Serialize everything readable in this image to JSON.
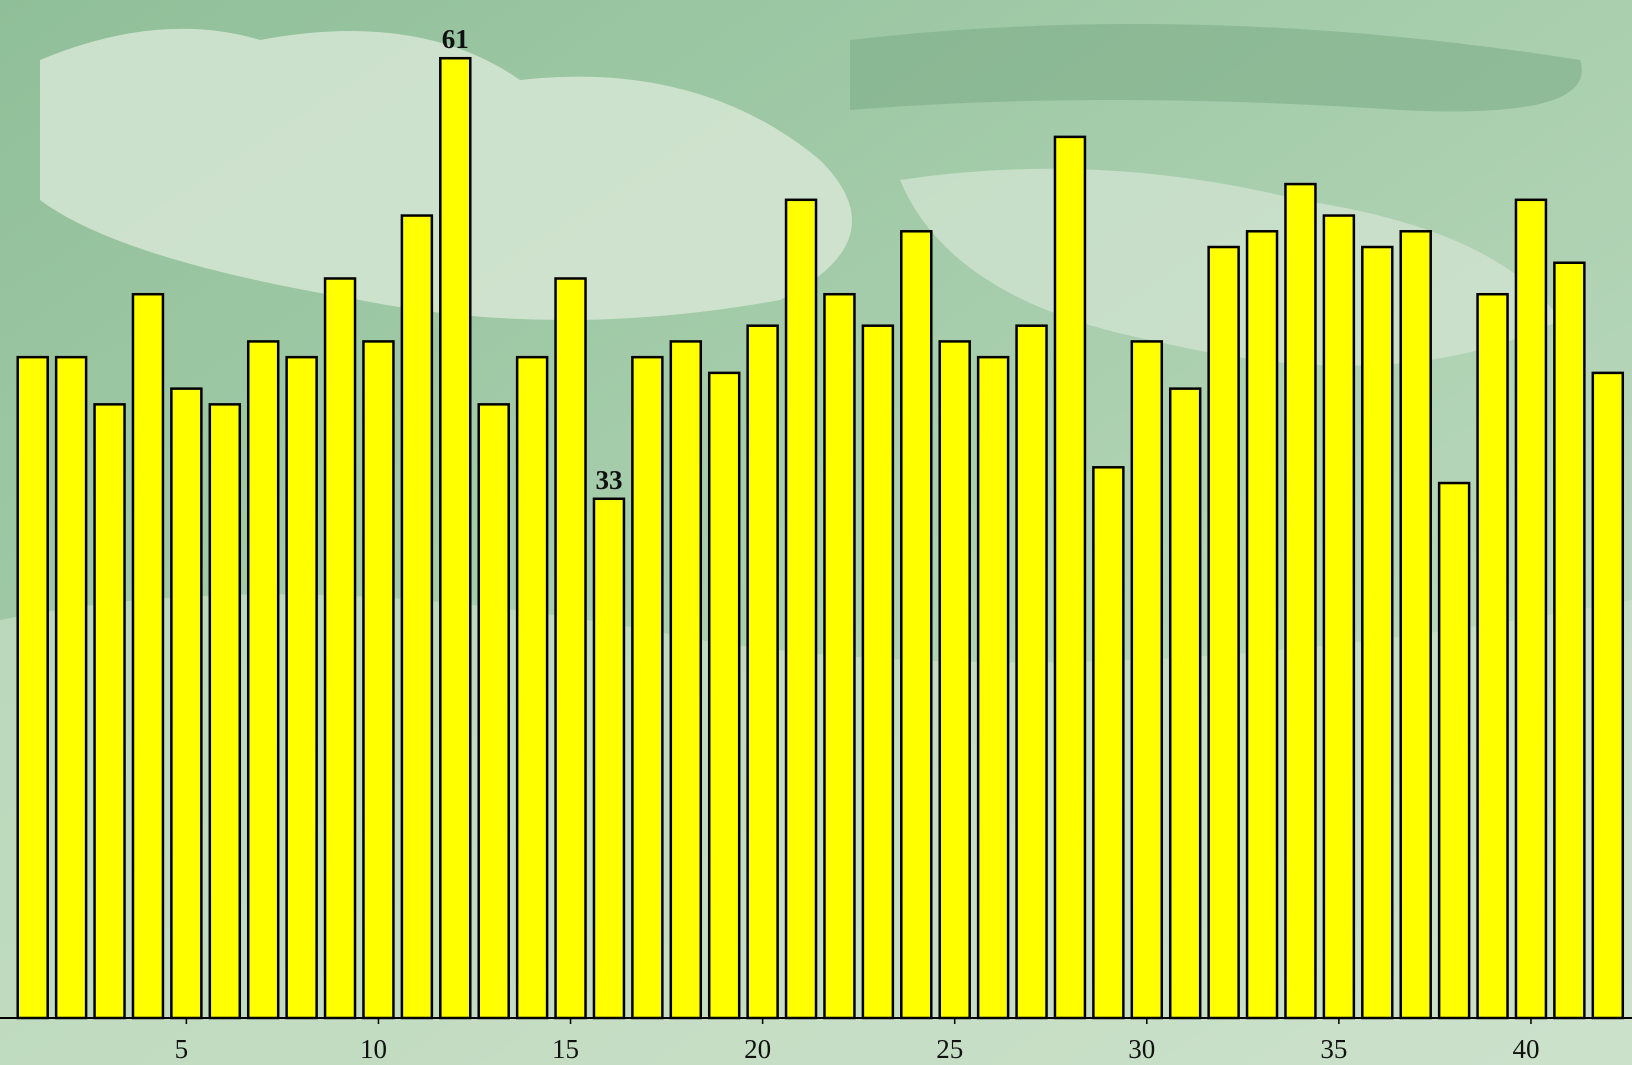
{
  "chart_data": {
    "type": "bar",
    "x": [
      1,
      2,
      3,
      4,
      5,
      6,
      7,
      8,
      9,
      10,
      11,
      12,
      13,
      14,
      15,
      16,
      17,
      18,
      19,
      20,
      21,
      22,
      23,
      24,
      25,
      26,
      27,
      28,
      29,
      30,
      31,
      32,
      33,
      34,
      35,
      36,
      37,
      38,
      39,
      40,
      41,
      42
    ],
    "values": [
      42,
      42,
      39,
      46,
      40,
      39,
      43,
      42,
      47,
      43,
      51,
      61,
      39,
      42,
      47,
      33,
      42,
      43,
      41,
      44,
      52,
      46,
      44,
      50,
      43,
      42,
      44,
      56,
      35,
      43,
      40,
      49,
      50,
      53,
      51,
      49,
      50,
      34,
      46,
      52,
      48,
      41
    ],
    "value_labels": [
      null,
      null,
      null,
      null,
      null,
      null,
      null,
      null,
      null,
      null,
      null,
      "61",
      null,
      null,
      null,
      "33",
      null,
      null,
      null,
      null,
      null,
      null,
      null,
      null,
      null,
      null,
      null,
      null,
      null,
      null,
      null,
      null,
      null,
      null,
      null,
      null,
      null,
      null,
      null,
      null,
      null,
      null
    ],
    "color": "#ffff00",
    "xlim": [
      0.5,
      42.5
    ],
    "xticks": [
      5,
      10,
      15,
      20,
      25,
      30,
      35,
      40
    ],
    "ylim": [
      0,
      64
    ]
  }
}
